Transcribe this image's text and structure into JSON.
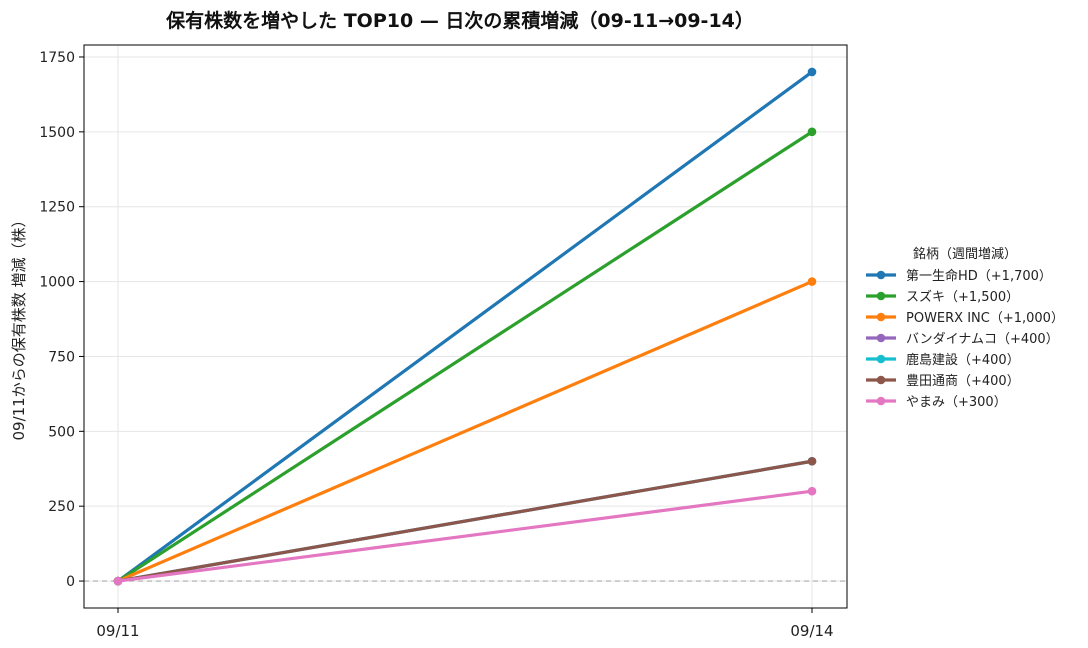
{
  "chart_data": {
    "type": "line",
    "title": "保有株数を増やした TOP10 — 日次の累積増減（09-11→09-14）",
    "xlabel": "",
    "ylabel": "09/11からの保有株数 増減（株）",
    "categories": [
      "09/11",
      "09/14"
    ],
    "ylim": [
      -90,
      1790
    ],
    "yticks": [
      0,
      250,
      500,
      750,
      1000,
      1250,
      1500,
      1750
    ],
    "grid": true,
    "zero_line": true,
    "legend": {
      "title": "銘柄（週間増減）",
      "placement": "right"
    },
    "series": [
      {
        "name": "第一生命HD（+1,700）",
        "color": "#1f77b4",
        "values": [
          0,
          1700
        ]
      },
      {
        "name": "スズキ（+1,500）",
        "color": "#2ca02c",
        "values": [
          0,
          1500
        ]
      },
      {
        "name": "POWERX INC（+1,000）",
        "color": "#ff7f0e",
        "values": [
          0,
          1000
        ]
      },
      {
        "name": "バンダイナムコ（+400）",
        "color": "#9467bd",
        "values": [
          0,
          400
        ]
      },
      {
        "name": "鹿島建設（+400）",
        "color": "#17becf",
        "values": [
          0,
          400
        ]
      },
      {
        "name": "豊田通商（+400）",
        "color": "#8c564b",
        "values": [
          0,
          400
        ]
      },
      {
        "name": "やまみ（+300）",
        "color": "#e377c2",
        "values": [
          0,
          300
        ]
      }
    ]
  }
}
